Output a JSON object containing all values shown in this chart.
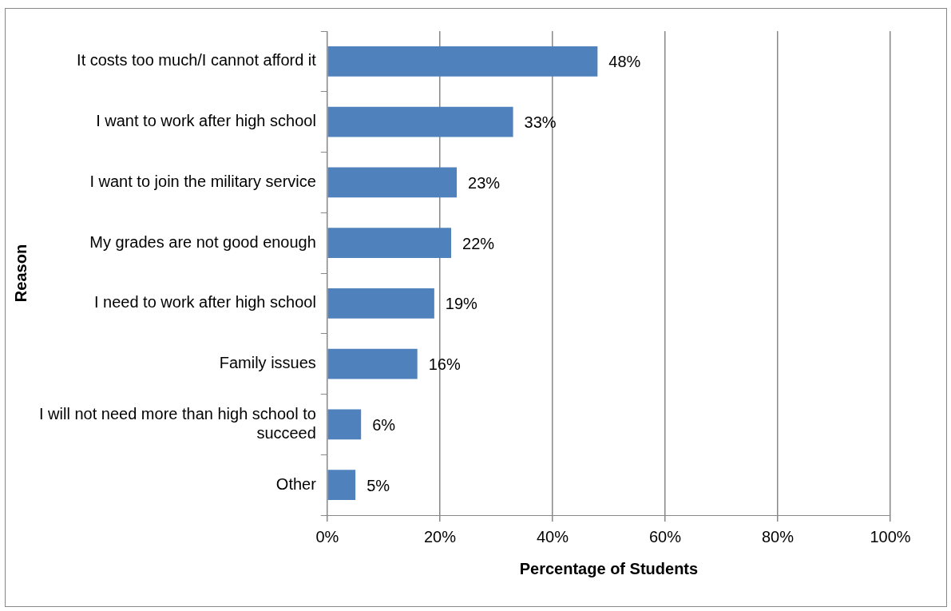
{
  "chart_data": {
    "type": "bar",
    "orientation": "horizontal",
    "xlabel": "Percentage of Students",
    "ylabel": "Reason",
    "categories": [
      "It costs too much/I cannot afford it",
      "I want to work after high school",
      "I want to join the military service",
      "My grades are not good enough",
      "I need to work after high school",
      "Family issues",
      "I will not need more than high school to succeed",
      "Other"
    ],
    "values": [
      48,
      33,
      23,
      22,
      19,
      16,
      6,
      5
    ],
    "value_labels": [
      "48%",
      "33%",
      "23%",
      "22%",
      "19%",
      "16%",
      "6%",
      "5%"
    ],
    "color": "#4f81bd",
    "xlim": [
      0,
      100
    ],
    "xticks": [
      {
        "value": 0,
        "label": "0%"
      },
      {
        "value": 20,
        "label": "20%"
      },
      {
        "value": 40,
        "label": "40%"
      },
      {
        "value": 60,
        "label": "60%"
      },
      {
        "value": 80,
        "label": "80%"
      },
      {
        "value": 100,
        "label": "100%"
      }
    ],
    "grid": "x",
    "legend": false
  }
}
